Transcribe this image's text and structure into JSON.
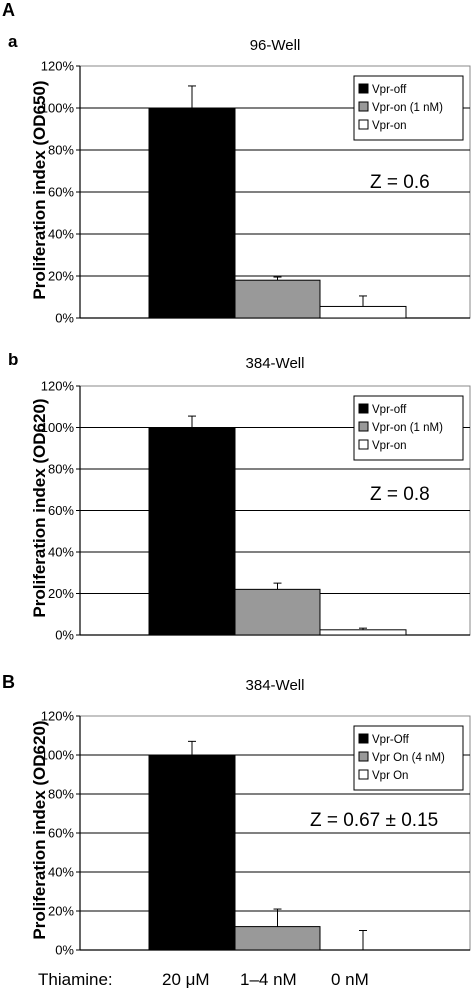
{
  "panel_labels": {
    "main_a": "A",
    "main_b": "B"
  },
  "bottom_axis": {
    "label": "Thiamine:",
    "categories": [
      "20 μM",
      "1–4 nM",
      "0 nM"
    ]
  },
  "colors": {
    "series": [
      "#000000",
      "#999999",
      "#ffffff"
    ],
    "grid": "#000000"
  },
  "chart_data": [
    {
      "type": "bar",
      "panel": "a",
      "title": "96-Well",
      "ylabel": "Proliferation index (OD650)",
      "ylim": [
        0,
        120
      ],
      "yticks": [
        "0%",
        "20%",
        "40%",
        "60%",
        "80%",
        "100%",
        "120%"
      ],
      "series": [
        {
          "name": "Vpr-off",
          "value": 100,
          "error": 10.5
        },
        {
          "name": "Vpr-on (1 nM)",
          "value": 18,
          "error": 1.5
        },
        {
          "name": "Vpr-on",
          "value": 5.5,
          "error": 5
        }
      ],
      "annotation": "Z = 0.6",
      "legend_position": "top-right",
      "grid": true
    },
    {
      "type": "bar",
      "panel": "b",
      "title": "384-Well",
      "ylabel": "Proliferation index (OD620)",
      "ylim": [
        0,
        120
      ],
      "yticks": [
        "0%",
        "20%",
        "40%",
        "60%",
        "80%",
        "100%",
        "120%"
      ],
      "series": [
        {
          "name": "Vpr-off",
          "value": 100,
          "error": 5.5
        },
        {
          "name": "Vpr-on (1 nM)",
          "value": 22,
          "error": 3
        },
        {
          "name": "Vpr-on",
          "value": 2.5,
          "error": 0.8
        }
      ],
      "annotation": "Z = 0.8",
      "legend_position": "top-right",
      "grid": true
    },
    {
      "type": "bar",
      "panel": "B",
      "title": "384-Well",
      "ylabel": "Proliferation index (OD620)",
      "ylim": [
        0,
        120
      ],
      "yticks": [
        "0%",
        "20%",
        "40%",
        "60%",
        "80%",
        "100%",
        "120%"
      ],
      "series": [
        {
          "name": "Vpr-Off",
          "value": 100,
          "error": 7
        },
        {
          "name": "Vpr On (4 nM)",
          "value": 12,
          "error": 9
        },
        {
          "name": "Vpr On",
          "value": 0,
          "error": 10
        }
      ],
      "annotation": "Z = 0.67 ± 0.15",
      "legend_position": "top-right",
      "grid": true
    }
  ]
}
